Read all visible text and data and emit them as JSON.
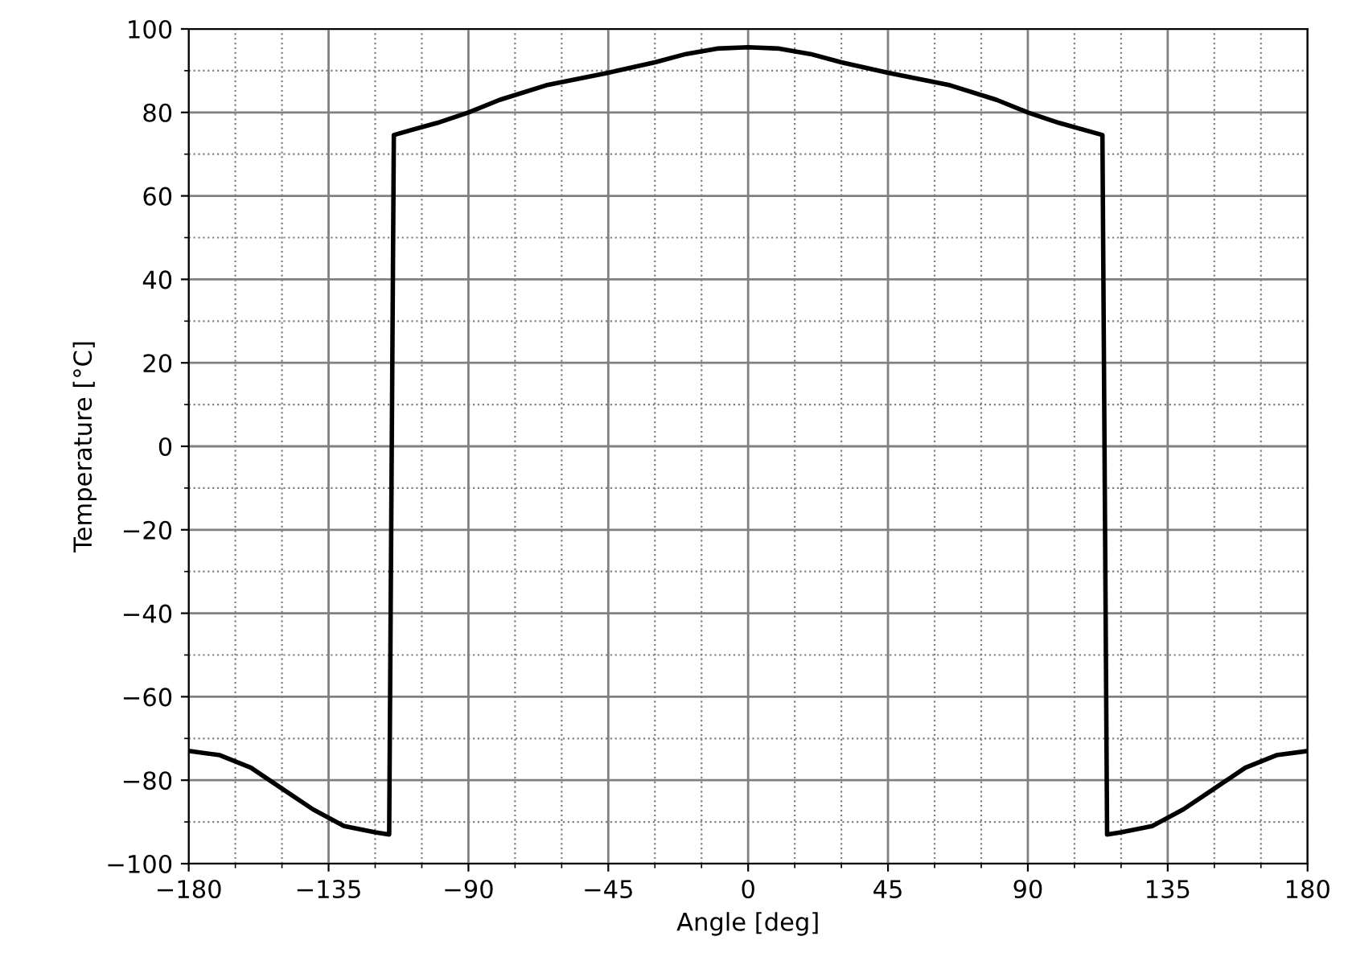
{
  "chart_data": {
    "type": "line",
    "xlabel": "Angle [deg]",
    "ylabel": "Temperature [°C]",
    "xlim": [
      -180,
      180
    ],
    "ylim": [
      -100,
      100
    ],
    "xticks": [
      -180,
      -135,
      -90,
      -45,
      0,
      45,
      90,
      135,
      180
    ],
    "yticks": [
      -100,
      -80,
      -60,
      -40,
      -20,
      0,
      20,
      40,
      60,
      80,
      100
    ],
    "grid": true,
    "legend": false,
    "marker": "none",
    "line_style": "solid",
    "series": [
      {
        "color": "#000000",
        "x": [
          -180,
          -170,
          -160,
          -150,
          -140,
          -130,
          -120,
          -115.5,
          -114,
          -100,
          -90,
          -80,
          -65,
          -45,
          -30,
          -20,
          -10,
          0,
          10,
          20,
          30,
          45,
          65,
          80,
          90,
          100,
          114,
          115.5,
          120,
          130,
          140,
          150,
          160,
          170,
          180
        ],
        "values": [
          -73,
          -74,
          -77,
          -82,
          -87,
          -91,
          -92.5,
          -93,
          74.6,
          77.5,
          80,
          83,
          86.5,
          89.5,
          92,
          94,
          95.3,
          95.6,
          95.3,
          94,
          92,
          89.5,
          86.5,
          83,
          80,
          77.5,
          74.6,
          -93,
          -92.5,
          -91,
          -87,
          -82,
          -77,
          -74,
          -73
        ]
      }
    ]
  }
}
